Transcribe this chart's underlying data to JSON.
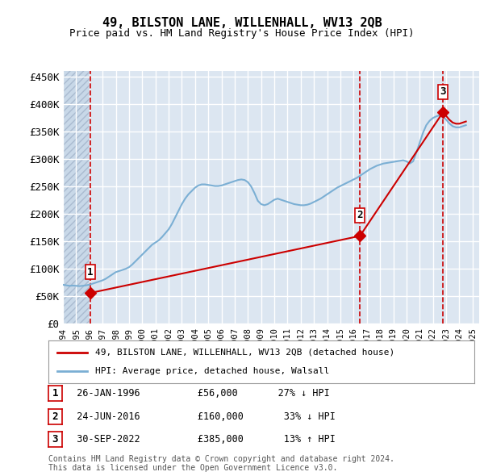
{
  "title": "49, BILSTON LANE, WILLENHALL, WV13 2QB",
  "subtitle": "Price paid vs. HM Land Registry's House Price Index (HPI)",
  "ylabel_ticks": [
    "£0",
    "£50K",
    "£100K",
    "£150K",
    "£200K",
    "£250K",
    "£300K",
    "£350K",
    "£400K",
    "£450K"
  ],
  "ytick_values": [
    0,
    50000,
    100000,
    150000,
    200000,
    250000,
    300000,
    350000,
    400000,
    450000
  ],
  "ylim": [
    0,
    460000
  ],
  "xlim_start": 1994.0,
  "xlim_end": 2025.5,
  "background_color": "#ffffff",
  "plot_bg_color": "#dce6f1",
  "hatch_color": "#b8c8dc",
  "grid_color": "#ffffff",
  "transactions": [
    {
      "num": 1,
      "date": "26-JAN-1996",
      "price": 56000,
      "year": 1996.07,
      "pct": "27%",
      "dir": "↓"
    },
    {
      "num": 2,
      "date": "24-JUN-2016",
      "price": 160000,
      "year": 2016.48,
      "pct": "33%",
      "dir": "↓"
    },
    {
      "num": 3,
      "date": "30-SEP-2022",
      "price": 385000,
      "year": 2022.75,
      "pct": "13%",
      "dir": "↑"
    }
  ],
  "hpi_line_color": "#7bafd4",
  "price_line_color": "#cc0000",
  "marker_color": "#cc0000",
  "dashed_line_color": "#cc0000",
  "legend_label_price": "49, BILSTON LANE, WILLENHALL, WV13 2QB (detached house)",
  "legend_label_hpi": "HPI: Average price, detached house, Walsall",
  "footnote": "Contains HM Land Registry data © Crown copyright and database right 2024.\nThis data is licensed under the Open Government Licence v3.0.",
  "hpi_data": {
    "years": [
      1994.0,
      1994.25,
      1994.5,
      1994.75,
      1995.0,
      1995.25,
      1995.5,
      1995.75,
      1996.0,
      1996.25,
      1996.5,
      1996.75,
      1997.0,
      1997.25,
      1997.5,
      1997.75,
      1998.0,
      1998.25,
      1998.5,
      1998.75,
      1999.0,
      1999.25,
      1999.5,
      1999.75,
      2000.0,
      2000.25,
      2000.5,
      2000.75,
      2001.0,
      2001.25,
      2001.5,
      2001.75,
      2002.0,
      2002.25,
      2002.5,
      2002.75,
      2003.0,
      2003.25,
      2003.5,
      2003.75,
      2004.0,
      2004.25,
      2004.5,
      2004.75,
      2005.0,
      2005.25,
      2005.5,
      2005.75,
      2006.0,
      2006.25,
      2006.5,
      2006.75,
      2007.0,
      2007.25,
      2007.5,
      2007.75,
      2008.0,
      2008.25,
      2008.5,
      2008.75,
      2009.0,
      2009.25,
      2009.5,
      2009.75,
      2010.0,
      2010.25,
      2010.5,
      2010.75,
      2011.0,
      2011.25,
      2011.5,
      2011.75,
      2012.0,
      2012.25,
      2012.5,
      2012.75,
      2013.0,
      2013.25,
      2013.5,
      2013.75,
      2014.0,
      2014.25,
      2014.5,
      2014.75,
      2015.0,
      2015.25,
      2015.5,
      2015.75,
      2016.0,
      2016.25,
      2016.5,
      2016.75,
      2017.0,
      2017.25,
      2017.5,
      2017.75,
      2018.0,
      2018.25,
      2018.5,
      2018.75,
      2019.0,
      2019.25,
      2019.5,
      2019.75,
      2020.0,
      2020.25,
      2020.5,
      2020.75,
      2021.0,
      2021.25,
      2021.5,
      2021.75,
      2022.0,
      2022.25,
      2022.5,
      2022.75,
      2023.0,
      2023.25,
      2023.5,
      2023.75,
      2024.0,
      2024.25,
      2024.5
    ],
    "values": [
      71000,
      70000,
      69000,
      69500,
      69000,
      68500,
      69000,
      70000,
      71000,
      73000,
      75000,
      77000,
      79000,
      82000,
      86000,
      90000,
      94000,
      96000,
      98000,
      100000,
      103000,
      108000,
      114000,
      120000,
      126000,
      132000,
      138000,
      144000,
      148000,
      152000,
      158000,
      165000,
      172000,
      182000,
      194000,
      206000,
      218000,
      228000,
      236000,
      242000,
      248000,
      252000,
      254000,
      254000,
      253000,
      252000,
      251000,
      251000,
      252000,
      254000,
      256000,
      258000,
      260000,
      262000,
      263000,
      262000,
      258000,
      250000,
      238000,
      224000,
      218000,
      216000,
      218000,
      222000,
      226000,
      228000,
      226000,
      224000,
      222000,
      220000,
      218000,
      217000,
      216000,
      216000,
      217000,
      219000,
      222000,
      225000,
      228000,
      232000,
      236000,
      240000,
      244000,
      248000,
      251000,
      254000,
      257000,
      260000,
      263000,
      266000,
      270000,
      274000,
      278000,
      282000,
      285000,
      288000,
      290000,
      292000,
      293000,
      294000,
      295000,
      296000,
      297000,
      298000,
      296000,
      292000,
      296000,
      312000,
      330000,
      348000,
      362000,
      370000,
      375000,
      378000,
      380000,
      378000,
      372000,
      365000,
      360000,
      358000,
      358000,
      360000,
      362000
    ]
  },
  "price_line_data": {
    "years": [
      1996.07,
      2016.48,
      2022.75
    ],
    "values": [
      56000,
      160000,
      385000
    ]
  }
}
